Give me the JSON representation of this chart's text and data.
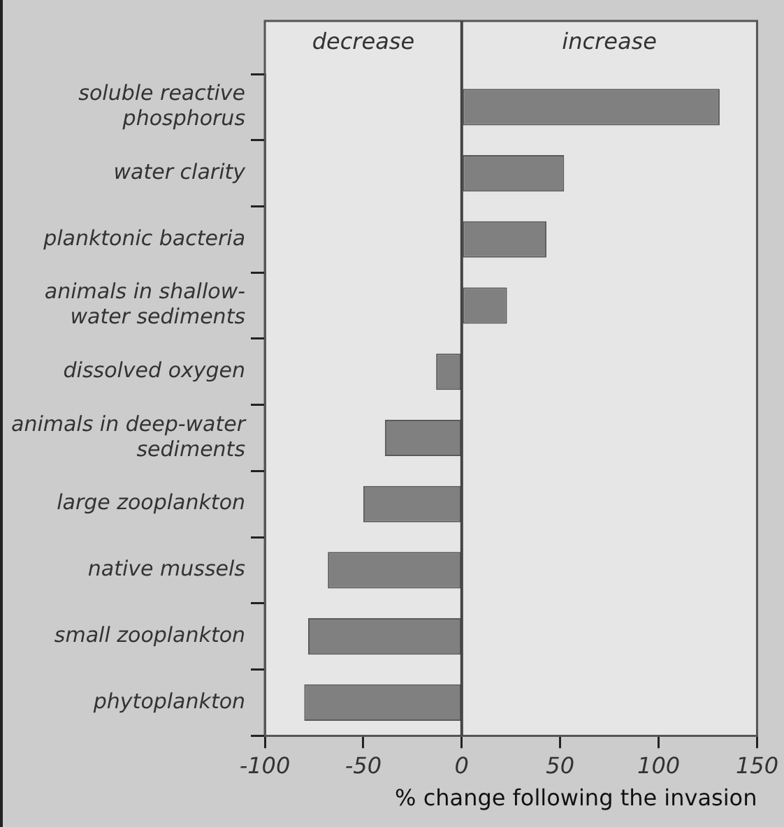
{
  "chart_data": {
    "type": "bar",
    "orientation": "horizontal",
    "xlabel": "% change following the invasion",
    "categories": [
      "soluble reactive phosphorus",
      "water clarity",
      "planktonic bacteria",
      "animals in shallow-water sediments",
      "dissolved oxygen",
      "animals in deep-water sediments",
      "large zooplankton",
      "native mussels",
      "small zooplankton",
      "phytoplankton"
    ],
    "values": [
      131,
      52,
      43,
      23,
      -13,
      -39,
      -50,
      -68,
      -78,
      -80
    ],
    "color": "#808080",
    "xlim": [
      -100,
      150
    ],
    "xticks": [
      -100,
      -50,
      0,
      50,
      100,
      150
    ],
    "ref_lines": [
      {
        "axis": "x",
        "value": 0,
        "color": "#444444"
      }
    ],
    "annotations": [
      "decrease",
      "increase"
    ],
    "grid": false,
    "legend": false
  }
}
